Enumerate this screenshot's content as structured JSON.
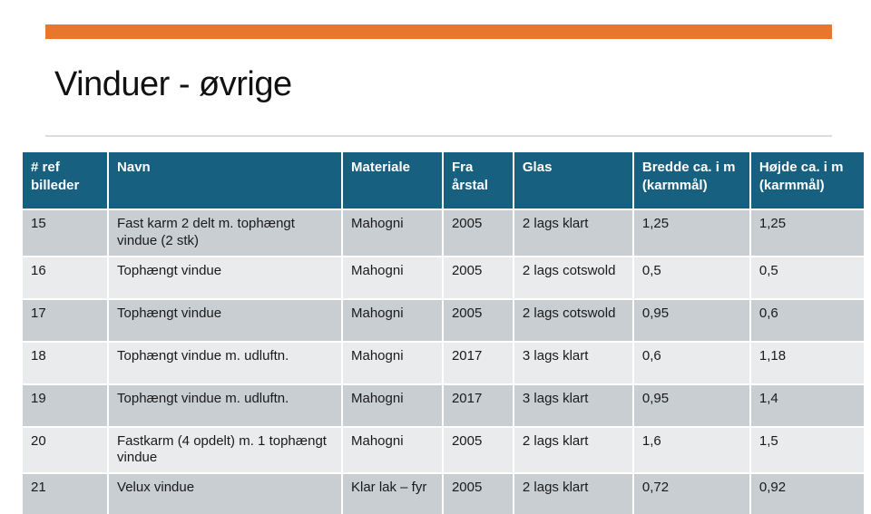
{
  "slide": {
    "title": "Vinduer - øvrige"
  },
  "colors": {
    "accent_bar": "#E8762D",
    "header_bg": "#176080",
    "row_dark": "#C9CED3",
    "row_light": "#E9EBED",
    "divider": "#DADCDD",
    "text": "#1A1A1A"
  },
  "table": {
    "headers": [
      "# ref billeder",
      "Navn",
      "Materiale",
      "Fra årstal",
      "Glas",
      "Bredde ca. i m (karmmål)",
      "Højde ca. i m (karmmål)"
    ],
    "rows": [
      [
        "15",
        "Fast karm 2 delt m. tophængt vindue (2 stk)",
        "Mahogni",
        "2005",
        "2 lags klart",
        "1,25",
        "1,25"
      ],
      [
        "16",
        "Tophængt vindue",
        "Mahogni",
        "2005",
        "2 lags cotswold",
        "0,5",
        "0,5"
      ],
      [
        "17",
        "Tophængt vindue",
        "Mahogni",
        "2005",
        "2 lags cotswold",
        "0,95",
        "0,6"
      ],
      [
        "18",
        "Tophængt vindue m. udluftn.",
        "Mahogni",
        "2017",
        "3 lags klart",
        "0,6",
        "1,18"
      ],
      [
        "19",
        "Tophængt vindue m. udluftn.",
        "Mahogni",
        "2017",
        "3 lags klart",
        "0,95",
        "1,4"
      ],
      [
        "20",
        "Fastkarm (4 opdelt) m. 1 tophængt vindue",
        "Mahogni",
        "2005",
        "2 lags klart",
        "1,6",
        "1,5"
      ],
      [
        "21",
        "Velux vindue",
        "Klar lak – fyr",
        "2005",
        "2 lags klart",
        "0,72",
        "0,92"
      ]
    ]
  }
}
